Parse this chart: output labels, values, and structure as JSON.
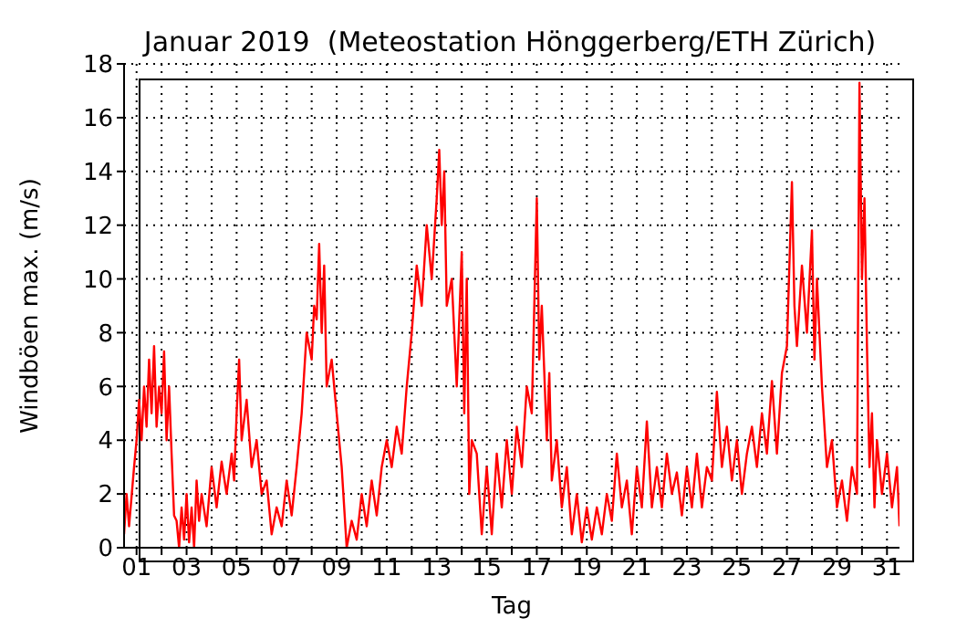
{
  "chart_data": {
    "type": "line",
    "title": "Januar 2019  (Meteostation Hönggerberg/ETH Zürich)",
    "xlabel": "Tag",
    "ylabel": "Windböen max. (m/s)",
    "xlim": [
      0.5,
      31.5
    ],
    "ylim": [
      0,
      18
    ],
    "xticks": [
      {
        "value": 1,
        "label": "01"
      },
      {
        "value": 2,
        "label": null
      },
      {
        "value": 3,
        "label": "03"
      },
      {
        "value": 4,
        "label": null
      },
      {
        "value": 5,
        "label": "05"
      },
      {
        "value": 6,
        "label": null
      },
      {
        "value": 7,
        "label": "07"
      },
      {
        "value": 8,
        "label": null
      },
      {
        "value": 9,
        "label": "09"
      },
      {
        "value": 10,
        "label": null
      },
      {
        "value": 11,
        "label": "11"
      },
      {
        "value": 12,
        "label": null
      },
      {
        "value": 13,
        "label": "13"
      },
      {
        "value": 14,
        "label": null
      },
      {
        "value": 15,
        "label": "15"
      },
      {
        "value": 16,
        "label": null
      },
      {
        "value": 17,
        "label": "17"
      },
      {
        "value": 18,
        "label": null
      },
      {
        "value": 19,
        "label": "19"
      },
      {
        "value": 20,
        "label": null
      },
      {
        "value": 21,
        "label": "21"
      },
      {
        "value": 22,
        "label": null
      },
      {
        "value": 23,
        "label": "23"
      },
      {
        "value": 24,
        "label": null
      },
      {
        "value": 25,
        "label": "25"
      },
      {
        "value": 26,
        "label": null
      },
      {
        "value": 27,
        "label": "27"
      },
      {
        "value": 28,
        "label": null
      },
      {
        "value": 29,
        "label": "29"
      },
      {
        "value": 30,
        "label": null
      },
      {
        "value": 31,
        "label": "31"
      }
    ],
    "yticks": [
      0,
      2,
      4,
      6,
      8,
      10,
      12,
      14,
      16,
      18
    ],
    "grid": true,
    "legend": false,
    "marker": "none",
    "line_style": "solid",
    "series": [
      {
        "color": "#ff0000",
        "x": [
          0.5,
          0.6,
          0.7,
          0.9,
          1.0,
          1.1,
          1.2,
          1.3,
          1.4,
          1.5,
          1.6,
          1.7,
          1.8,
          1.9,
          2.0,
          2.1,
          2.2,
          2.3,
          2.4,
          2.5,
          2.6,
          2.7,
          2.8,
          2.9,
          3.0,
          3.1,
          3.2,
          3.3,
          3.4,
          3.5,
          3.6,
          3.8,
          4.0,
          4.2,
          4.4,
          4.6,
          4.8,
          4.9,
          5.0,
          5.1,
          5.2,
          5.4,
          5.6,
          5.8,
          6.0,
          6.2,
          6.4,
          6.6,
          6.8,
          7.0,
          7.2,
          7.4,
          7.6,
          7.8,
          8.0,
          8.1,
          8.2,
          8.3,
          8.4,
          8.5,
          8.6,
          8.8,
          9.0,
          9.2,
          9.4,
          9.6,
          9.8,
          10.0,
          10.2,
          10.4,
          10.6,
          10.8,
          11.0,
          11.2,
          11.4,
          11.6,
          11.8,
          12.0,
          12.2,
          12.4,
          12.6,
          12.8,
          13.0,
          13.1,
          13.2,
          13.3,
          13.4,
          13.6,
          13.8,
          14.0,
          14.1,
          14.2,
          14.3,
          14.4,
          14.6,
          14.8,
          15.0,
          15.2,
          15.4,
          15.6,
          15.8,
          16.0,
          16.2,
          16.4,
          16.6,
          16.8,
          17.0,
          17.1,
          17.2,
          17.4,
          17.5,
          17.6,
          17.8,
          18.0,
          18.2,
          18.4,
          18.6,
          18.8,
          19.0,
          19.2,
          19.4,
          19.6,
          19.8,
          20.0,
          20.2,
          20.4,
          20.6,
          20.8,
          21.0,
          21.2,
          21.4,
          21.6,
          21.8,
          22.0,
          22.2,
          22.4,
          22.6,
          22.8,
          23.0,
          23.2,
          23.4,
          23.6,
          23.8,
          24.0,
          24.2,
          24.4,
          24.6,
          24.8,
          25.0,
          25.2,
          25.4,
          25.6,
          25.8,
          26.0,
          26.2,
          26.4,
          26.6,
          26.8,
          27.0,
          27.2,
          27.3,
          27.4,
          27.6,
          27.8,
          28.0,
          28.1,
          28.2,
          28.4,
          28.6,
          28.8,
          29.0,
          29.2,
          29.4,
          29.6,
          29.8,
          29.9,
          30.0,
          30.1,
          30.2,
          30.3,
          30.4,
          30.5,
          30.6,
          30.8,
          31.0,
          31.2,
          31.4,
          31.5
        ],
        "values": [
          0.5,
          2,
          0.8,
          3,
          4,
          5.5,
          4,
          6,
          4.5,
          7,
          5,
          7.5,
          4.5,
          6,
          5,
          7.3,
          4,
          6,
          3.5,
          1.2,
          1,
          0,
          1.5,
          0.3,
          2,
          0.2,
          1.5,
          0,
          2.5,
          1,
          2,
          0.8,
          3,
          1.5,
          3.2,
          2,
          3.5,
          2.5,
          5,
          7,
          4,
          5.5,
          3,
          4,
          2,
          2.5,
          0.5,
          1.5,
          0.8,
          2.5,
          1.2,
          3,
          5,
          8,
          7,
          9,
          8.5,
          11.3,
          8,
          10.5,
          6,
          7,
          5,
          3,
          0,
          1,
          0.3,
          2,
          0.8,
          2.5,
          1.2,
          3,
          4,
          3,
          4.5,
          3.5,
          6,
          8,
          10.5,
          9,
          12,
          10,
          13,
          14.8,
          12,
          14,
          9,
          10,
          6,
          11,
          5,
          10,
          2,
          4,
          3.5,
          0.5,
          3,
          0.5,
          3.5,
          1.5,
          4,
          2,
          4.5,
          3,
          6,
          5,
          13,
          7,
          9,
          4,
          6.5,
          2.5,
          4,
          1.5,
          3,
          0.5,
          2,
          0.2,
          1.5,
          0.3,
          1.5,
          0.5,
          2,
          1,
          3.5,
          1.5,
          2.5,
          0.5,
          3,
          1.5,
          4.7,
          1.5,
          3,
          1.5,
          3.5,
          2,
          2.8,
          1.2,
          3,
          1.5,
          3.5,
          1.5,
          3,
          2.5,
          5.8,
          3,
          4.5,
          2.5,
          4,
          2,
          3.5,
          4.5,
          3,
          5,
          3.5,
          6.2,
          3.5,
          6.5,
          7.5,
          13.6,
          9,
          7.5,
          10.5,
          8,
          11.8,
          7,
          10,
          6,
          3,
          4,
          1.5,
          2.5,
          1,
          3,
          2,
          17.3,
          10,
          13,
          7.5,
          3,
          5,
          1.5,
          4,
          2,
          3.5,
          1.5,
          3,
          0.8
        ]
      }
    ]
  }
}
